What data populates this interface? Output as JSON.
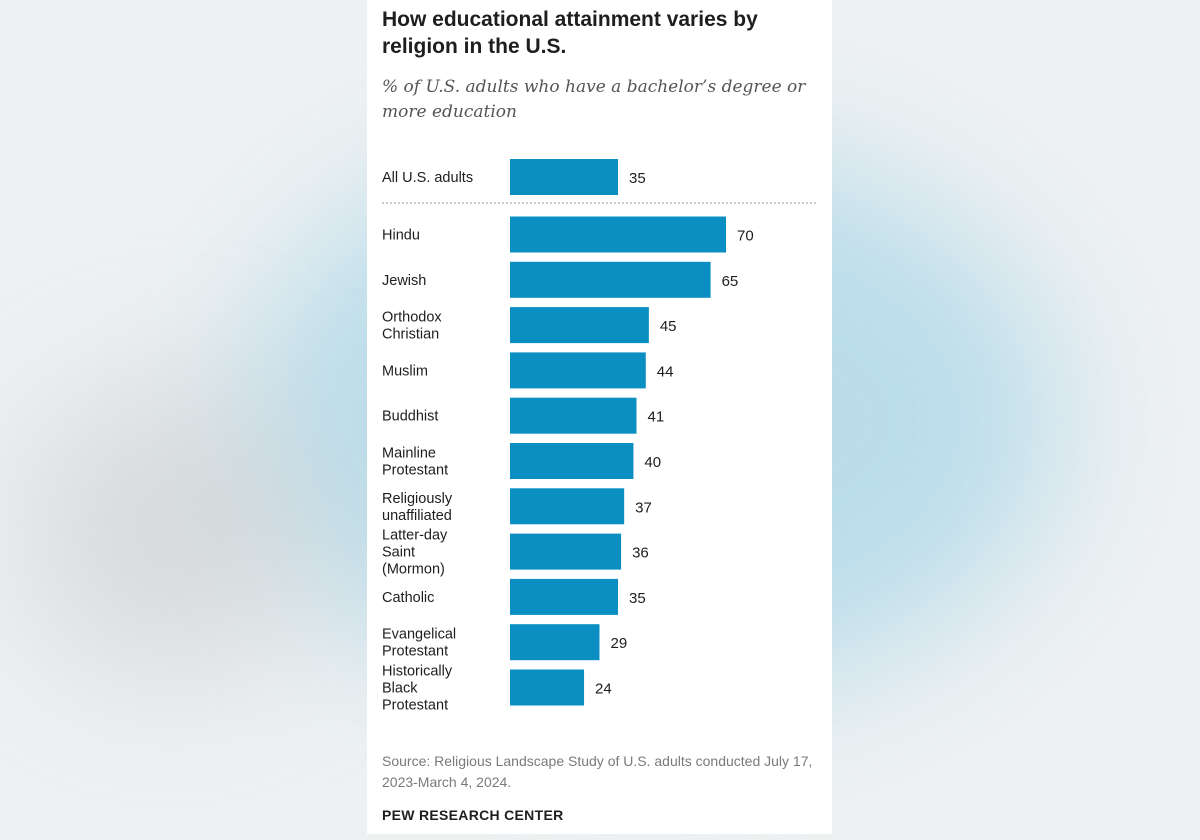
{
  "chart_data": {
    "type": "bar",
    "orientation": "horizontal",
    "title": "How educational attainment varies by religion in the U.S.",
    "subtitle": "% of U.S. adults who have a bachelor’s degree or more education",
    "reference": {
      "category": "All U.S. adults",
      "value": 35
    },
    "categories": [
      "Hindu",
      "Jewish",
      "Orthodox Christian",
      "Muslim",
      "Buddhist",
      "Mainline Protestant",
      "Religiously unaffiliated",
      "Latter-day Saint (Mormon)",
      "Catholic",
      "Evangelical Protestant",
      "Historically Black Protestant"
    ],
    "values": [
      70,
      65,
      45,
      44,
      41,
      40,
      37,
      36,
      35,
      29,
      24
    ],
    "xlim": [
      0,
      70
    ],
    "grid": false,
    "legend": "none",
    "bar_color": "#0b8fc3",
    "source": "Source: Religious Landscape Study of U.S. adults conducted July 17, 2023-March 4, 2024.",
    "brand": "PEW RESEARCH CENTER"
  }
}
